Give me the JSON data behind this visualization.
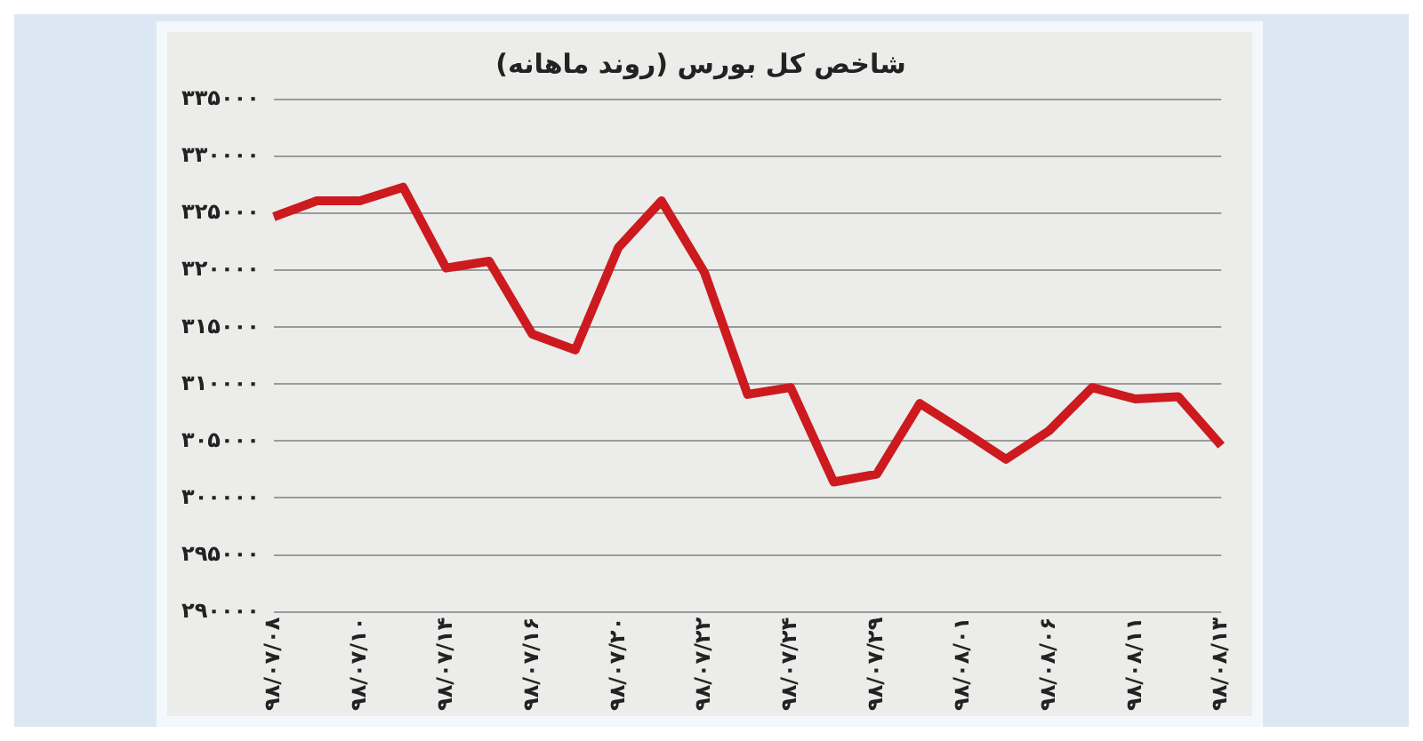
{
  "chart_data": {
    "type": "line",
    "title": "شاخص کل بورس (روند ماهانه)",
    "categories": [
      "۹۸/۰۷/۰۸",
      null,
      "۹۸/۰۷/۱۰",
      null,
      "۹۸/۰۷/۱۴",
      null,
      "۹۸/۰۷/۱۶",
      null,
      "۹۸/۰۷/۲۰",
      null,
      "۹۸/۰۷/۲۲",
      null,
      "۹۸/۰۷/۲۴",
      null,
      "۹۸/۰۷/۲۹",
      null,
      "۹۸/۰۸/۰۱",
      null,
      "۹۸/۰۸/۰۶",
      null,
      "۹۸/۰۸/۱۱",
      null,
      "۹۸/۰۸/۱۳"
    ],
    "series": [
      {
        "color": "#cc1a1f",
        "values": [
          324700,
          326100,
          326100,
          327300,
          320200,
          320800,
          314400,
          313000,
          322000,
          326100,
          319800,
          309100,
          309700,
          301400,
          302100,
          308300,
          305900,
          303400,
          305900,
          309700,
          308700,
          308900,
          304600
        ]
      }
    ],
    "ylim": [
      290000,
      335000
    ],
    "yticks": [
      {
        "value": 290000,
        "label": "۲۹۰۰۰۰"
      },
      {
        "value": 295000,
        "label": "۲۹۵۰۰۰"
      },
      {
        "value": 300000,
        "label": "۳۰۰۰۰۰"
      },
      {
        "value": 305000,
        "label": "۳۰۵۰۰۰"
      },
      {
        "value": 310000,
        "label": "۳۱۰۰۰۰"
      },
      {
        "value": 315000,
        "label": "۳۱۵۰۰۰"
      },
      {
        "value": 320000,
        "label": "۳۲۰۰۰۰"
      },
      {
        "value": 325000,
        "label": "۳۲۵۰۰۰"
      },
      {
        "value": 330000,
        "label": "۳۳۰۰۰۰"
      },
      {
        "value": 335000,
        "label": "۳۳۵۰۰۰"
      }
    ],
    "grid": "y",
    "legend": false,
    "marker": "none",
    "line_style": "solid"
  }
}
